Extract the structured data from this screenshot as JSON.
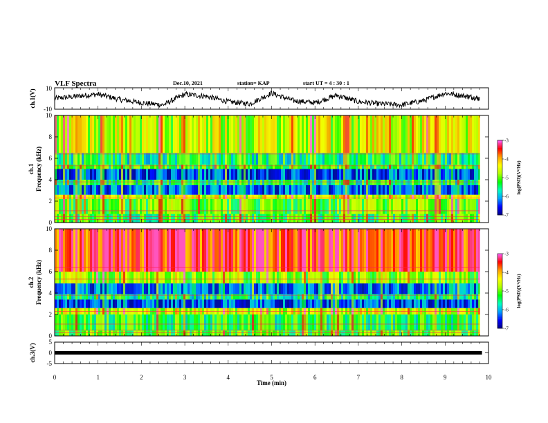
{
  "header": {
    "title": "VLF Spectra",
    "date": "Dec.10, 2021",
    "station": "station= KAP",
    "start_ut": "start UT =  4 : 30 : 1"
  },
  "chart_data": [
    {
      "id": "ch1_waveform",
      "type": "line",
      "ylabel": "ch.1(V)",
      "ylim": [
        -10,
        10
      ],
      "y_ticks": [
        "10",
        "-10"
      ],
      "xlim": [
        0,
        10
      ],
      "x_ticks": [
        "0",
        "1",
        "2",
        "3",
        "4",
        "5",
        "6",
        "7",
        "8",
        "9",
        "10"
      ],
      "series": [
        {
          "x": [
            0,
            0.5,
            1,
            1.5,
            2,
            2.5,
            3,
            3.5,
            4,
            4.5,
            5,
            5.5,
            6,
            6.5,
            7,
            7.5,
            8,
            8.5,
            9,
            9.5,
            9.8
          ],
          "values": [
            0,
            2,
            4,
            -1,
            -4,
            -6,
            4,
            2,
            -3,
            -5,
            5,
            -2,
            -4,
            3,
            -3,
            -5,
            -6,
            -2,
            5,
            2,
            0
          ]
        }
      ]
    },
    {
      "id": "ch1_spectrogram",
      "type": "heatmap",
      "ylabel": "ch.1\nFrequency (kHz)",
      "ylim": [
        0,
        10
      ],
      "y_ticks": [
        "0",
        "2",
        "4",
        "6",
        "8",
        "10"
      ],
      "xlim": [
        0,
        9.85
      ],
      "bands_khz_log_psd": [
        {
          "f": [
            0,
            0.8
          ],
          "level": -5.2
        },
        {
          "f": [
            0.8,
            2.2
          ],
          "level": -5.0
        },
        {
          "f": [
            2.2,
            2.6
          ],
          "level": -4.5
        },
        {
          "f": [
            2.6,
            3.5
          ],
          "level": -6.3
        },
        {
          "f": [
            3.5,
            4.0
          ],
          "level": -5.4
        },
        {
          "f": [
            4.0,
            5.0
          ],
          "level": -6.4
        },
        {
          "f": [
            5.0,
            5.4
          ],
          "level": -5.2
        },
        {
          "f": [
            5.4,
            6.5
          ],
          "level": -5.5
        },
        {
          "f": [
            6.5,
            10
          ],
          "level": -4.6
        }
      ],
      "colorbar": {
        "label": "log(PSD)(V²/Hz)",
        "range": [
          -7,
          -3
        ],
        "ticks": [
          "-3",
          "-4",
          "-5",
          "-6",
          "-7"
        ]
      }
    },
    {
      "id": "ch2_spectrogram",
      "type": "heatmap",
      "ylabel": "ch.2\nFrequency (kHz)",
      "ylim": [
        0,
        10
      ],
      "y_ticks": [
        "0",
        "2",
        "4",
        "6",
        "8",
        "10"
      ],
      "xlim": [
        0,
        9.85
      ],
      "bands_khz_log_psd": [
        {
          "f": [
            0,
            0.5
          ],
          "level": -5.0
        },
        {
          "f": [
            0.5,
            2.0
          ],
          "level": -5.3
        },
        {
          "f": [
            2.0,
            2.6
          ],
          "level": -4.6
        },
        {
          "f": [
            2.6,
            3.4
          ],
          "level": -6.4
        },
        {
          "f": [
            3.4,
            3.9
          ],
          "level": -5.5
        },
        {
          "f": [
            3.9,
            4.9
          ],
          "level": -6.2
        },
        {
          "f": [
            4.9,
            6.0
          ],
          "level": -4.8
        },
        {
          "f": [
            6.0,
            10
          ],
          "level": -3.6
        }
      ],
      "colorbar": {
        "label": "log(PSD)(V²/Hz)",
        "range": [
          -7,
          -3
        ],
        "ticks": [
          "-3",
          "-4",
          "-5",
          "-6",
          "-7"
        ]
      }
    },
    {
      "id": "ch3_signal",
      "type": "line",
      "ylabel": "ch.3(V)",
      "ylim": [
        -5,
        5
      ],
      "y_ticks": [
        "5",
        "0",
        "-5"
      ],
      "xlim": [
        0,
        10
      ],
      "x_ticks": [
        "0",
        "1",
        "2",
        "3",
        "4",
        "5",
        "6",
        "7",
        "8",
        "9",
        "10"
      ],
      "xlabel": "Time (min)",
      "series": [
        {
          "x": [
            0,
            9.85
          ],
          "values": [
            0,
            0
          ]
        }
      ]
    }
  ],
  "colorbar_colors": [
    "#000080",
    "#0000ff",
    "#00a0ff",
    "#00ffc0",
    "#00ff00",
    "#b0ff00",
    "#ffff00",
    "#ffa000",
    "#ff0000",
    "#ff60ff"
  ]
}
